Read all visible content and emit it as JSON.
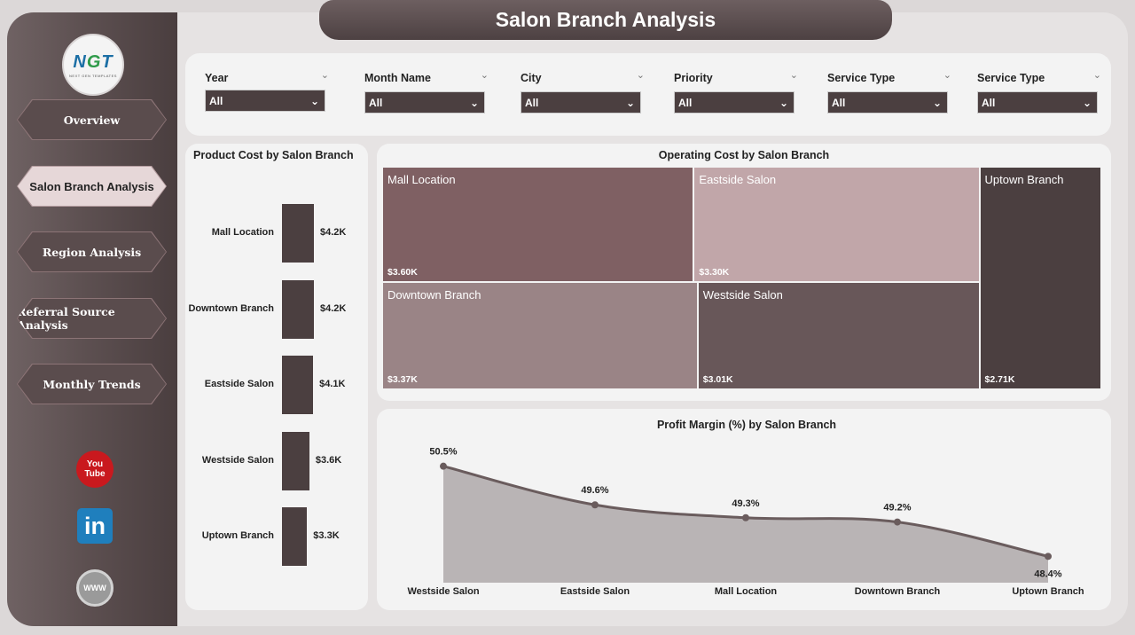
{
  "title": "Salon Branch Analysis",
  "logo": {
    "mark_n": "N",
    "mark_g": "G",
    "mark_t": "T",
    "subtitle": "NEXT GEN TEMPLATES"
  },
  "nav": [
    {
      "label": "Overview",
      "active": false
    },
    {
      "label": "Salon Branch Analysis",
      "active": true
    },
    {
      "label": "Region Analysis",
      "active": false
    },
    {
      "label": "Referral Source Analysis",
      "active": false
    },
    {
      "label": "Monthly Trends",
      "active": false
    }
  ],
  "social": {
    "youtube_top": "You",
    "youtube_bottom": "Tube",
    "linkedin": "in",
    "web": "WWW"
  },
  "filters": [
    {
      "label": "Year",
      "value": "All"
    },
    {
      "label": "Month Name",
      "value": "All"
    },
    {
      "label": "City",
      "value": "All"
    },
    {
      "label": "Priority",
      "value": "All"
    },
    {
      "label": "Service Type",
      "value": "All"
    },
    {
      "label": "Service Type",
      "value": "All"
    }
  ],
  "colors": {
    "bar": "#4b3f40",
    "tile_mall": "#7f6063",
    "tile_eastside": "#c1a6a9",
    "tile_downtown": "#9a8486",
    "tile_westside": "#685759",
    "tile_uptown": "#4b3f40",
    "area_fill": "#b9b4b5",
    "line": "#6a5c5d"
  },
  "product_cost": {
    "title": "Product Cost by Salon Branch",
    "chart_data": {
      "type": "bar",
      "categories": [
        "Mall Location",
        "Downtown Branch",
        "Eastside Salon",
        "Westside Salon",
        "Uptown Branch"
      ],
      "values": [
        4.2,
        4.2,
        4.1,
        3.6,
        3.3
      ],
      "value_labels": [
        "$4.2K",
        "$4.2K",
        "$4.1K",
        "$3.6K",
        "$3.3K"
      ],
      "orientation": "horizontal"
    }
  },
  "operating_cost": {
    "title": "Operating Cost by Salon Branch",
    "chart_data": {
      "type": "treemap",
      "categories": [
        "Mall Location",
        "Eastside Salon",
        "Downtown Branch",
        "Westside Salon",
        "Uptown Branch"
      ],
      "values": [
        3.6,
        3.3,
        3.37,
        3.01,
        2.71
      ],
      "value_labels": [
        "$3.60K",
        "$3.30K",
        "$3.37K",
        "$3.01K",
        "$2.71K"
      ]
    }
  },
  "profit_margin": {
    "title": "Profit Margin (%) by Salon Branch",
    "chart_data": {
      "type": "area",
      "categories": [
        "Westside Salon",
        "Eastside Salon",
        "Mall Location",
        "Downtown Branch",
        "Uptown Branch"
      ],
      "values": [
        50.5,
        49.6,
        49.3,
        49.2,
        48.4
      ],
      "value_labels": [
        "50.5%",
        "49.6%",
        "49.3%",
        "49.2%",
        "48.4%"
      ]
    }
  }
}
